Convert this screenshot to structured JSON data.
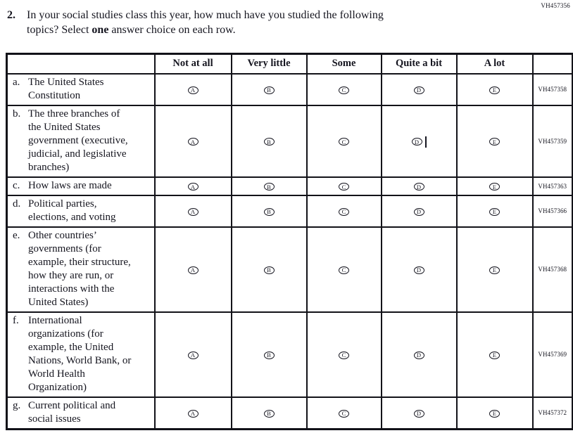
{
  "page": {
    "top_right_code": "VH457356"
  },
  "question": {
    "number": "2.",
    "line1": "In your social studies class this year, how much have you studied the following",
    "line2_start": "topics? Select ",
    "line2_bold": "one",
    "line2_end": " answer choice on each row."
  },
  "table": {
    "column_headers": [
      "Not at all",
      "Very little",
      "Some",
      "Quite a bit",
      "A lot"
    ],
    "answer_options": [
      "A",
      "B",
      "C",
      "D",
      "E"
    ],
    "rows": [
      {
        "letter": "a.",
        "label": "The United States Constitution",
        "code": "VH457358"
      },
      {
        "letter": "b.",
        "label": "The three branches of the United States government (executive, judicial, and legislative branches)",
        "code": "VH457359",
        "cursor_after_option": "D"
      },
      {
        "letter": "c.",
        "label": "How laws are made",
        "code": "VH457363"
      },
      {
        "letter": "d.",
        "label": "Political parties, elections, and voting",
        "code": "VH457366"
      },
      {
        "letter": "e.",
        "label": "Other countries’ governments (for example, their structure, how they are run, or interactions with the United States)",
        "code": "VH457368"
      },
      {
        "letter": "f.",
        "label": "International organizations (for example, the United Nations, World Bank, or World Health Organization)",
        "code": "VH457369"
      },
      {
        "letter": "g.",
        "label": "Current political and social issues",
        "code": "VH457372"
      }
    ]
  },
  "colors": {
    "text": "#15151f",
    "border": "#121218",
    "background": "#ffffff"
  }
}
